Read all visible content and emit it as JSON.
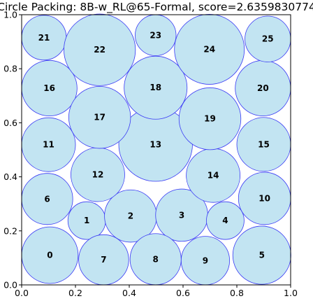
{
  "chart_data": {
    "type": "scatter",
    "title": "Circle Packing: 8B-w_RL@65-Formal, score=2.6359830774",
    "xlabel": "",
    "ylabel": "",
    "xlim": [
      0,
      1
    ],
    "ylim": [
      0,
      1
    ],
    "grid": false,
    "x_ticks": [
      "0.0",
      "0.2",
      "0.4",
      "0.6",
      "0.8",
      "1.0"
    ],
    "y_ticks": [
      "0.0",
      "0.2",
      "0.4",
      "0.6",
      "0.8",
      "1.0"
    ],
    "colors": {
      "fill": "#c2e4f2",
      "edge": "#3a3af5"
    },
    "circles": [
      {
        "label": "0",
        "x": 0.105,
        "y": 0.11,
        "r": 0.105
      },
      {
        "label": "1",
        "x": 0.242,
        "y": 0.238,
        "r": 0.07
      },
      {
        "label": "2",
        "x": 0.405,
        "y": 0.255,
        "r": 0.097
      },
      {
        "label": "3",
        "x": 0.595,
        "y": 0.258,
        "r": 0.097
      },
      {
        "label": "4",
        "x": 0.757,
        "y": 0.238,
        "r": 0.07
      },
      {
        "label": "5",
        "x": 0.893,
        "y": 0.11,
        "r": 0.108
      },
      {
        "label": "6",
        "x": 0.095,
        "y": 0.318,
        "r": 0.095
      },
      {
        "label": "7",
        "x": 0.305,
        "y": 0.093,
        "r": 0.093
      },
      {
        "label": "8",
        "x": 0.498,
        "y": 0.095,
        "r": 0.095
      },
      {
        "label": "9",
        "x": 0.683,
        "y": 0.09,
        "r": 0.09
      },
      {
        "label": "10",
        "x": 0.903,
        "y": 0.32,
        "r": 0.097
      },
      {
        "label": "11",
        "x": 0.1,
        "y": 0.519,
        "r": 0.1
      },
      {
        "label": "12",
        "x": 0.283,
        "y": 0.408,
        "r": 0.1
      },
      {
        "label": "13",
        "x": 0.498,
        "y": 0.52,
        "r": 0.137
      },
      {
        "label": "14",
        "x": 0.712,
        "y": 0.405,
        "r": 0.1
      },
      {
        "label": "15",
        "x": 0.9,
        "y": 0.52,
        "r": 0.1
      },
      {
        "label": "16",
        "x": 0.103,
        "y": 0.728,
        "r": 0.103
      },
      {
        "label": "17",
        "x": 0.29,
        "y": 0.62,
        "r": 0.115
      },
      {
        "label": "18",
        "x": 0.498,
        "y": 0.73,
        "r": 0.117
      },
      {
        "label": "19",
        "x": 0.7,
        "y": 0.615,
        "r": 0.115
      },
      {
        "label": "20",
        "x": 0.897,
        "y": 0.728,
        "r": 0.103
      },
      {
        "label": "21",
        "x": 0.083,
        "y": 0.915,
        "r": 0.083
      },
      {
        "label": "22",
        "x": 0.29,
        "y": 0.87,
        "r": 0.133
      },
      {
        "label": "23",
        "x": 0.498,
        "y": 0.924,
        "r": 0.076
      },
      {
        "label": "24",
        "x": 0.698,
        "y": 0.872,
        "r": 0.13
      },
      {
        "label": "25",
        "x": 0.915,
        "y": 0.91,
        "r": 0.085
      }
    ]
  }
}
